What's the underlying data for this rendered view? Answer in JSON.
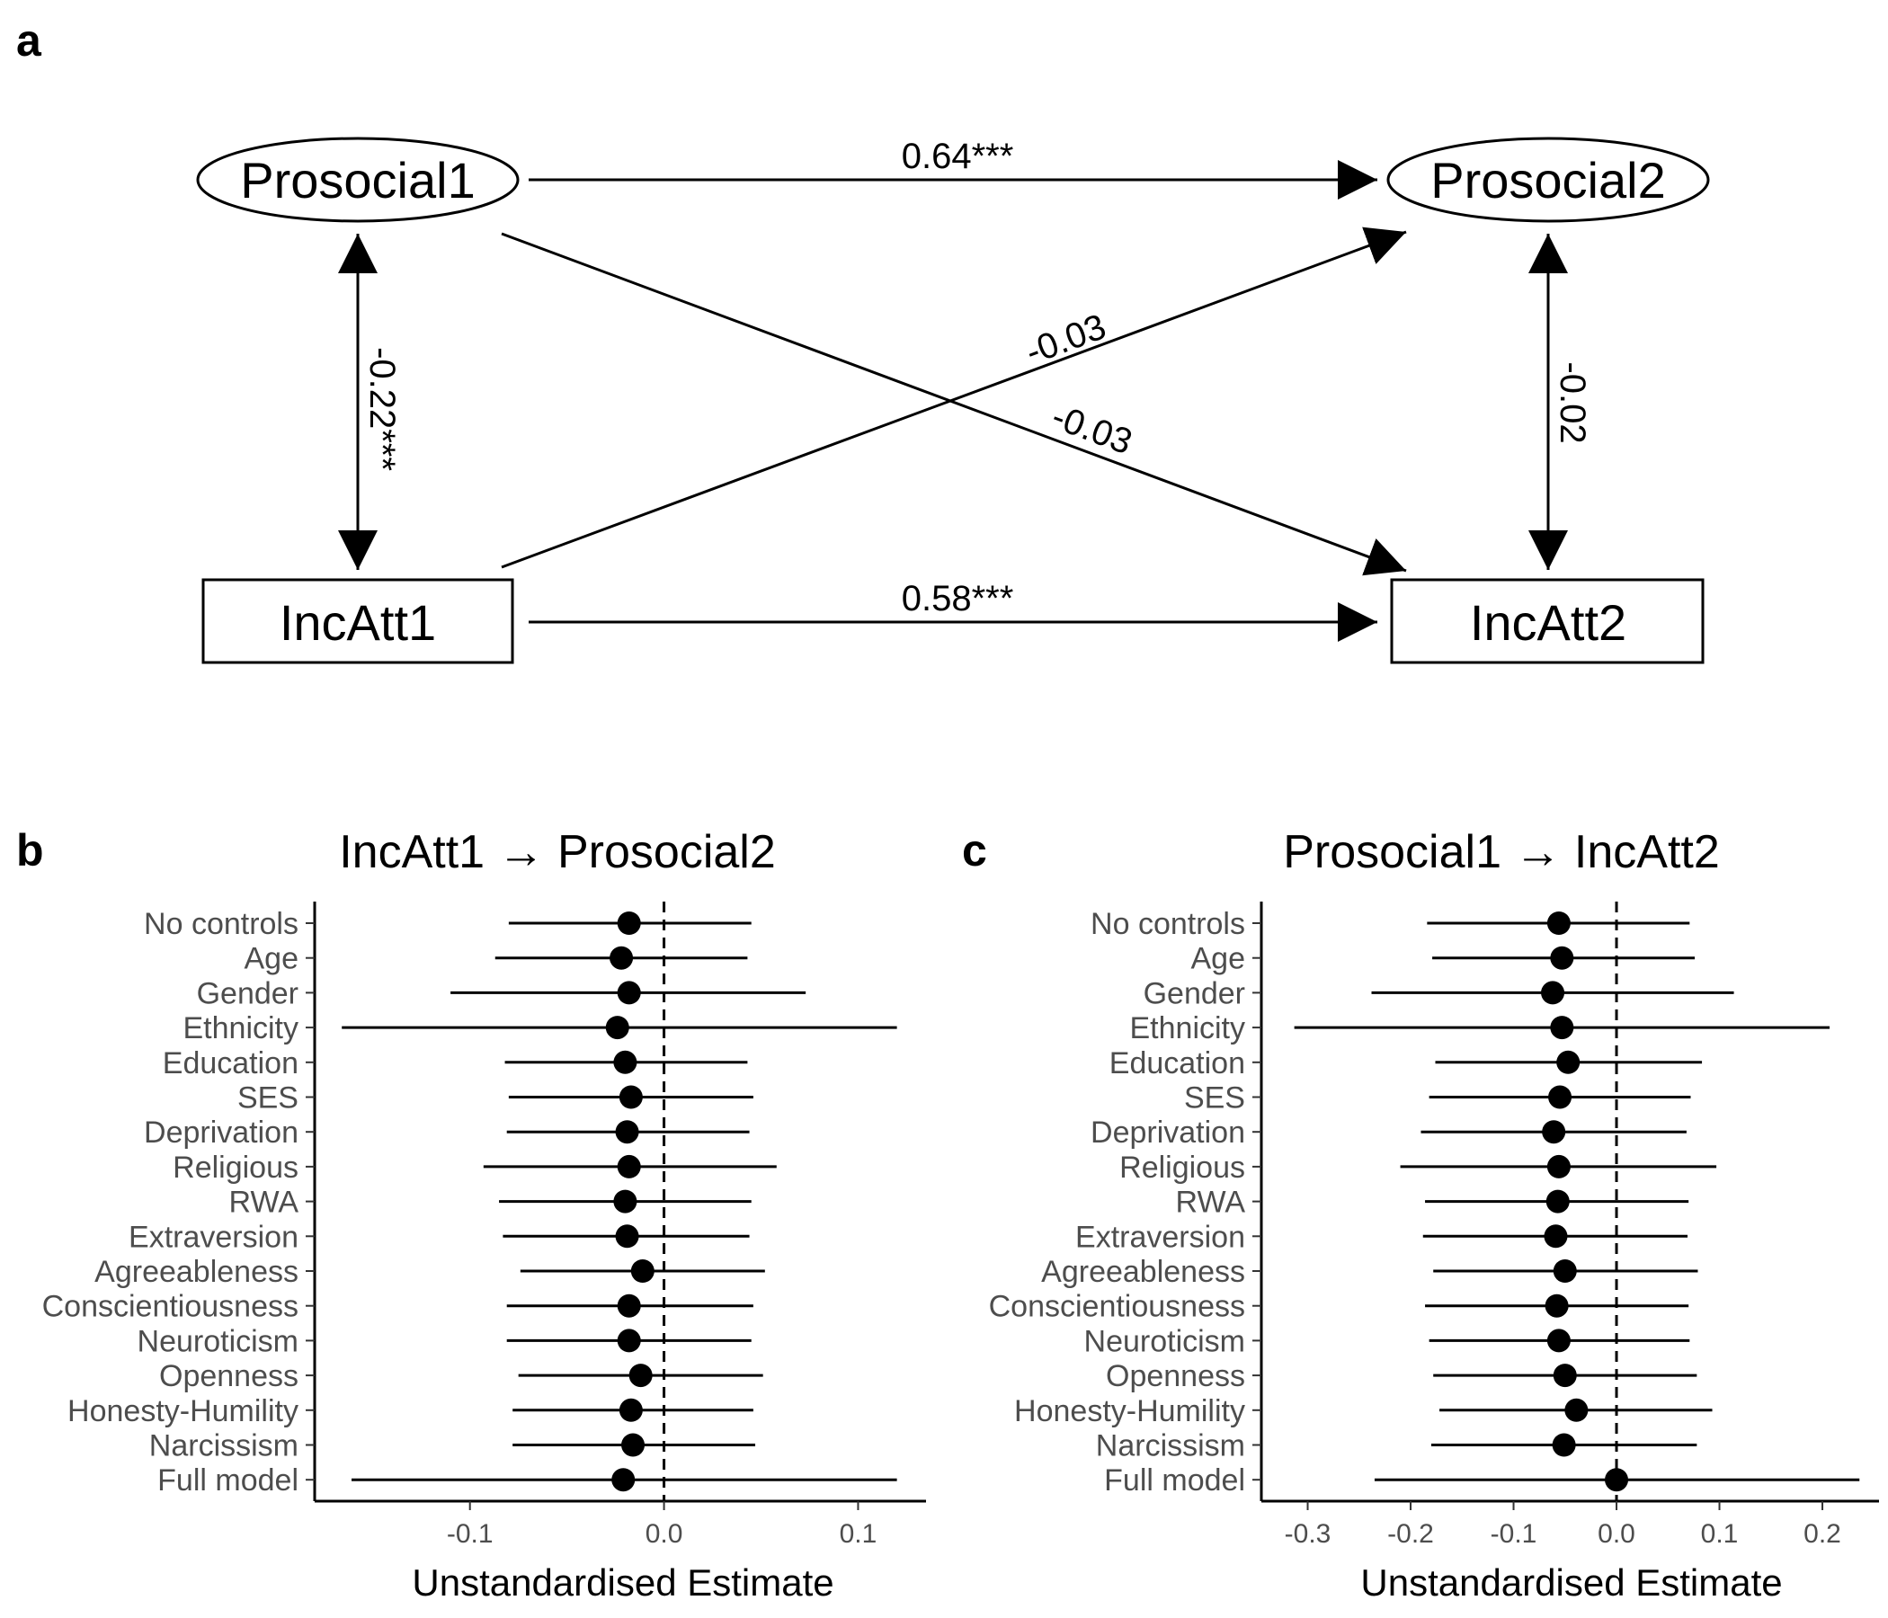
{
  "panels": {
    "a": "a",
    "b": "b",
    "c": "c"
  },
  "diagram": {
    "nodes": {
      "prosocial1": "Prosocial1",
      "prosocial2": "Prosocial2",
      "incatt1": "IncAtt1",
      "incatt2": "IncAtt2"
    },
    "paths": {
      "pro1_pro2": "0.64***",
      "inc1_inc2": "0.58***",
      "inc1_pro2": "-0.03",
      "pro1_inc2": "-0.03",
      "pro1_inc1": "-0.22***",
      "pro2_inc2": "-0.02"
    }
  },
  "chart_data": [
    {
      "type": "forest",
      "title": "IncAtt1 → Prosocial2",
      "xlabel": "Unstandardised Estimate",
      "xlim": [
        -0.18,
        0.135
      ],
      "xticks": [
        -0.1,
        0.0,
        0.1
      ],
      "xtick_labels": [
        "-0.1",
        "0.0",
        "0.1"
      ],
      "reference_line": 0,
      "categories": [
        "No controls",
        "Age",
        "Gender",
        "Ethnicity",
        "Education",
        "SES",
        "Deprivation",
        "Religious",
        "RWA",
        "Extraversion",
        "Agreeableness",
        "Conscientiousness",
        "Neuroticism",
        "Openness",
        "Honesty-Humility",
        "Narcissism",
        "Full model"
      ],
      "estimate": [
        -0.018,
        -0.022,
        -0.018,
        -0.024,
        -0.02,
        -0.017,
        -0.019,
        -0.018,
        -0.02,
        -0.019,
        -0.011,
        -0.018,
        -0.018,
        -0.012,
        -0.017,
        -0.016,
        -0.021
      ],
      "lower": [
        -0.08,
        -0.087,
        -0.11,
        -0.166,
        -0.082,
        -0.08,
        -0.081,
        -0.093,
        -0.085,
        -0.083,
        -0.074,
        -0.081,
        -0.081,
        -0.075,
        -0.078,
        -0.078,
        -0.161
      ],
      "upper": [
        0.045,
        0.043,
        0.073,
        0.12,
        0.043,
        0.046,
        0.044,
        0.058,
        0.045,
        0.044,
        0.052,
        0.046,
        0.045,
        0.051,
        0.046,
        0.047,
        0.12
      ]
    },
    {
      "type": "forest",
      "title": "Prosocial1 → IncAtt2",
      "xlabel": "Unstandardised Estimate",
      "xlim": [
        -0.345,
        0.255
      ],
      "xticks": [
        -0.3,
        -0.2,
        -0.1,
        0.0,
        0.1,
        0.2
      ],
      "xtick_labels": [
        "-0.3",
        "-0.2",
        "-0.1",
        "0.0",
        "0.1",
        "0.2"
      ],
      "reference_line": 0,
      "categories": [
        "No controls",
        "Age",
        "Gender",
        "Ethnicity",
        "Education",
        "SES",
        "Deprivation",
        "Religious",
        "RWA",
        "Extraversion",
        "Agreeableness",
        "Conscientiousness",
        "Neuroticism",
        "Openness",
        "Honesty-Humility",
        "Narcissism",
        "Full model"
      ],
      "estimate": [
        -0.056,
        -0.053,
        -0.062,
        -0.053,
        -0.047,
        -0.055,
        -0.061,
        -0.056,
        -0.057,
        -0.059,
        -0.05,
        -0.058,
        -0.056,
        -0.05,
        -0.039,
        -0.051,
        0.0
      ],
      "lower": [
        -0.184,
        -0.179,
        -0.238,
        -0.313,
        -0.176,
        -0.182,
        -0.19,
        -0.21,
        -0.186,
        -0.188,
        -0.178,
        -0.186,
        -0.182,
        -0.178,
        -0.172,
        -0.18,
        -0.235
      ],
      "upper": [
        0.071,
        0.076,
        0.114,
        0.207,
        0.083,
        0.072,
        0.068,
        0.097,
        0.07,
        0.069,
        0.079,
        0.07,
        0.071,
        0.078,
        0.093,
        0.078,
        0.236
      ]
    }
  ]
}
